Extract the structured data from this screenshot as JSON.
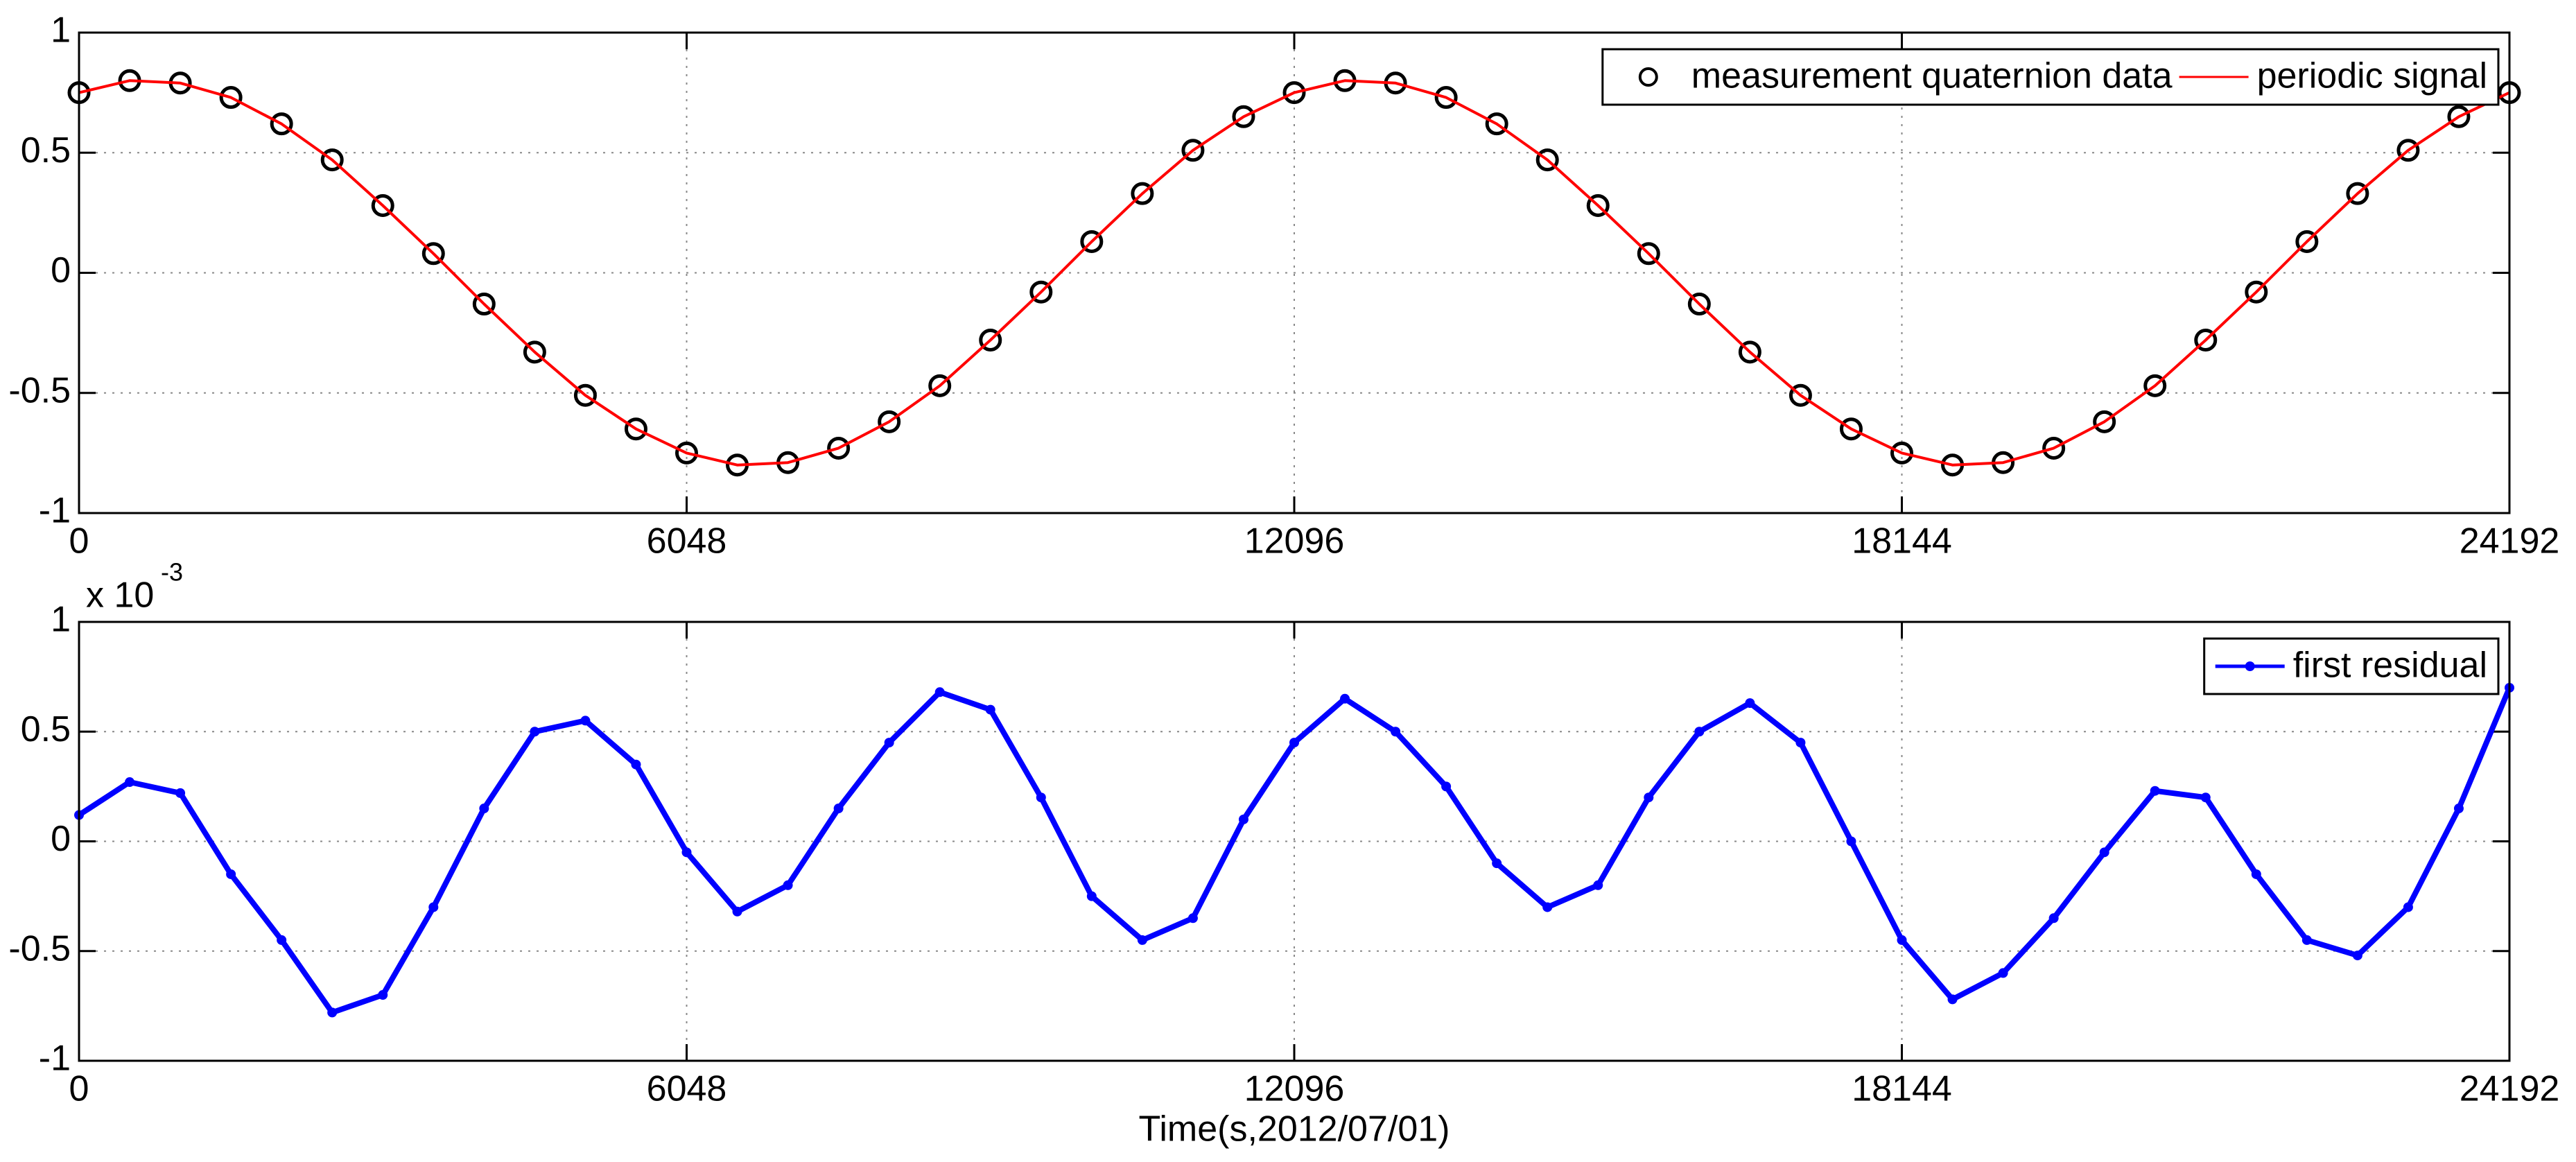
{
  "chart_data": [
    {
      "type": "line",
      "x": [
        0,
        504,
        1008,
        1512,
        2016,
        2520,
        3024,
        3528,
        4032,
        4536,
        5040,
        5544,
        6048,
        6552,
        7056,
        7560,
        8064,
        8568,
        9072,
        9576,
        10080,
        10584,
        11088,
        11592,
        12096,
        12600,
        13104,
        13608,
        14112,
        14616,
        15120,
        15624,
        16128,
        16632,
        17136,
        17640,
        18144,
        18648,
        19152,
        19656,
        20160,
        20664,
        21168,
        21672,
        22176,
        22680,
        23184,
        23688,
        24192
      ],
      "series": [
        {
          "name": "measurement quaternion data",
          "color": "#000000",
          "marker": "o",
          "line": false,
          "values": [
            0.75,
            0.8,
            0.79,
            0.73,
            0.62,
            0.47,
            0.28,
            0.08,
            -0.13,
            -0.33,
            -0.51,
            -0.65,
            -0.75,
            -0.8,
            -0.79,
            -0.73,
            -0.62,
            -0.47,
            -0.28,
            -0.08,
            0.13,
            0.33,
            0.51,
            0.65,
            0.75,
            0.8,
            0.79,
            0.73,
            0.62,
            0.47,
            0.28,
            0.08,
            -0.13,
            -0.33,
            -0.51,
            -0.65,
            -0.75,
            -0.8,
            -0.79,
            -0.73,
            -0.62,
            -0.47,
            -0.28,
            -0.08,
            0.13,
            0.33,
            0.51,
            0.65,
            0.75
          ]
        },
        {
          "name": "periodic signal",
          "color": "#ff0000",
          "line": true,
          "values": [
            0.75,
            0.8,
            0.79,
            0.73,
            0.62,
            0.47,
            0.28,
            0.08,
            -0.13,
            -0.33,
            -0.51,
            -0.65,
            -0.75,
            -0.8,
            -0.79,
            -0.73,
            -0.62,
            -0.47,
            -0.28,
            -0.08,
            0.13,
            0.33,
            0.51,
            0.65,
            0.75,
            0.8,
            0.79,
            0.73,
            0.62,
            0.47,
            0.28,
            0.08,
            -0.13,
            -0.33,
            -0.51,
            -0.65,
            -0.75,
            -0.8,
            -0.79,
            -0.73,
            -0.62,
            -0.47,
            -0.28,
            -0.08,
            0.13,
            0.33,
            0.51,
            0.65,
            0.75
          ]
        }
      ],
      "xlim": [
        0,
        24192
      ],
      "xticks": [
        0,
        6048,
        12096,
        18144,
        24192
      ],
      "ylim": [
        -1,
        1
      ],
      "yticks": [
        -1,
        -0.5,
        0,
        0.5,
        1
      ],
      "grid": true,
      "legend": "upper right",
      "legend_layout": "horizontal"
    },
    {
      "type": "line",
      "x": [
        0,
        504,
        1008,
        1512,
        2016,
        2520,
        3024,
        3528,
        4032,
        4536,
        5040,
        5544,
        6048,
        6552,
        7056,
        7560,
        8064,
        8568,
        9072,
        9576,
        10080,
        10584,
        11088,
        11592,
        12096,
        12600,
        13104,
        13608,
        14112,
        14616,
        15120,
        15624,
        16128,
        16632,
        17136,
        17640,
        18144,
        18648,
        19152,
        19656,
        20160,
        20664,
        21168,
        21672,
        22176,
        22680,
        23184,
        23688,
        24192
      ],
      "series": [
        {
          "name": "first residual",
          "color": "#0000ff",
          "marker": ".",
          "line": true,
          "values": [
            0.12,
            0.27,
            0.22,
            -0.15,
            -0.45,
            -0.78,
            -0.7,
            -0.3,
            0.15,
            0.5,
            0.55,
            0.35,
            -0.05,
            -0.32,
            -0.2,
            0.15,
            0.45,
            0.68,
            0.6,
            0.2,
            -0.25,
            -0.45,
            -0.35,
            0.1,
            0.45,
            0.65,
            0.5,
            0.25,
            -0.1,
            -0.3,
            -0.2,
            0.2,
            0.5,
            0.63,
            0.45,
            0.0,
            -0.45,
            -0.72,
            -0.6,
            -0.35,
            -0.05,
            0.23,
            0.2,
            -0.15,
            -0.45,
            -0.52,
            -0.3,
            0.15,
            0.7
          ]
        }
      ],
      "xlim": [
        0,
        24192
      ],
      "xticks": [
        0,
        6048,
        12096,
        18144,
        24192
      ],
      "ylim": [
        -1,
        1
      ],
      "yticks": [
        -1,
        -0.5,
        0,
        0.5,
        1
      ],
      "y_multiplier_base": "x 10",
      "y_multiplier_exponent": "-3",
      "xlabel": "Time(s,2012/07/01)",
      "grid": true,
      "legend": "upper right",
      "legend_layout": "horizontal"
    }
  ]
}
